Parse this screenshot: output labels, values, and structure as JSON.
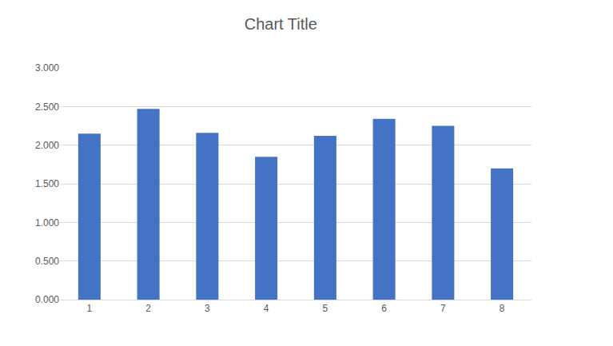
{
  "chart_data": {
    "type": "bar",
    "title": "Chart Title",
    "categories": [
      "1",
      "2",
      "3",
      "4",
      "5",
      "6",
      "7",
      "8"
    ],
    "values": [
      2.15,
      2.47,
      2.16,
      1.85,
      2.12,
      2.34,
      2.25,
      1.7
    ],
    "color": "#4472c4",
    "ylim": [
      0,
      3
    ],
    "yticks": [
      {
        "value": 0,
        "label": "0.000"
      },
      {
        "value": 0.5,
        "label": "0.500"
      },
      {
        "value": 1,
        "label": "1.000"
      },
      {
        "value": 1.5,
        "label": "1.500"
      },
      {
        "value": 2,
        "label": "2.000"
      },
      {
        "value": 2.5,
        "label": "2.500"
      },
      {
        "value": 3,
        "label": "3.000"
      }
    ],
    "grid": true
  }
}
